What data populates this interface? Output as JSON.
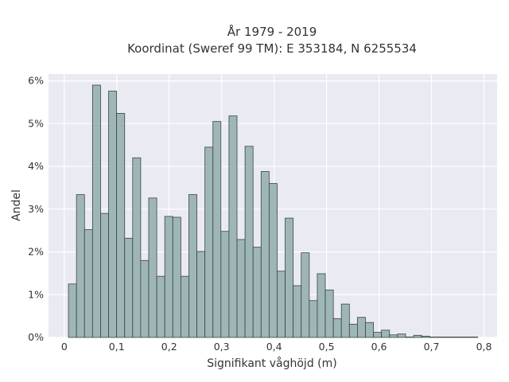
{
  "chart_data": {
    "type": "bar",
    "title_line1": "År 1979 - 2019",
    "title_line2": "Koordinat (Sweref 99 TM): E 353184, N 6255534",
    "xlabel": "Signifikant våghöjd (m)",
    "ylabel": "Andel",
    "xlim": [
      -0.03,
      0.825
    ],
    "ylim": [
      0,
      0.0616
    ],
    "x_ticks": [
      0,
      0.1,
      0.2,
      0.3,
      0.4,
      0.5,
      0.6,
      0.7,
      0.8
    ],
    "x_tick_labels": [
      "0",
      "0,1",
      "0,2",
      "0,3",
      "0,4",
      "0,5",
      "0,6",
      "0,7",
      "0,8"
    ],
    "y_ticks": [
      0,
      0.01,
      0.02,
      0.03,
      0.04,
      0.05,
      0.06
    ],
    "y_tick_labels": [
      "0%",
      "1%",
      "2%",
      "3%",
      "4%",
      "5%",
      "6%"
    ],
    "grid": true,
    "bin_width": 0.0153,
    "bin_start": 0.008,
    "values": [
      0.0125,
      0.0334,
      0.0252,
      0.059,
      0.029,
      0.0576,
      0.0524,
      0.0232,
      0.042,
      0.018,
      0.0326,
      0.0143,
      0.0283,
      0.0281,
      0.0143,
      0.0334,
      0.0201,
      0.0445,
      0.0505,
      0.0248,
      0.0518,
      0.0229,
      0.0447,
      0.0211,
      0.0388,
      0.036,
      0.0155,
      0.0279,
      0.0121,
      0.0198,
      0.0086,
      0.0149,
      0.0111,
      0.0044,
      0.0078,
      0.0031,
      0.0047,
      0.0035,
      0.0012,
      0.0017,
      0.0006,
      0.0008,
      0.0001,
      0.0005,
      0.0003,
      0.0001,
      0.0001,
      0.0001,
      0.0001,
      0.0001,
      0.0001
    ]
  }
}
